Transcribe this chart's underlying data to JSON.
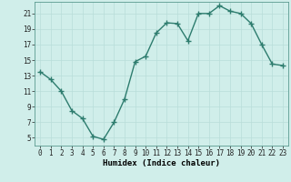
{
  "x": [
    0,
    1,
    2,
    3,
    4,
    5,
    6,
    7,
    8,
    9,
    10,
    11,
    12,
    13,
    14,
    15,
    16,
    17,
    18,
    19,
    20,
    21,
    22,
    23
  ],
  "y": [
    13.5,
    12.5,
    11.0,
    8.5,
    7.5,
    5.2,
    4.8,
    7.0,
    10.0,
    14.8,
    15.5,
    18.5,
    19.8,
    19.7,
    17.5,
    21.0,
    21.0,
    22.0,
    21.3,
    21.0,
    19.7,
    17.0,
    14.5,
    14.3
  ],
  "line_color": "#2d7c6e",
  "marker": "+",
  "marker_size": 4,
  "bg_color": "#d0eeea",
  "grid_color": "#b8ddd9",
  "xlabel": "Humidex (Indice chaleur)",
  "xlim": [
    -0.5,
    23.5
  ],
  "ylim": [
    4,
    22.5
  ],
  "yticks": [
    5,
    7,
    9,
    11,
    13,
    15,
    17,
    19,
    21
  ],
  "xticks": [
    0,
    1,
    2,
    3,
    4,
    5,
    6,
    7,
    8,
    9,
    10,
    11,
    12,
    13,
    14,
    15,
    16,
    17,
    18,
    19,
    20,
    21,
    22,
    23
  ],
  "tick_fontsize": 5.5,
  "xlabel_fontsize": 6.5,
  "line_width": 1.0,
  "spine_color": "#5a9a90"
}
